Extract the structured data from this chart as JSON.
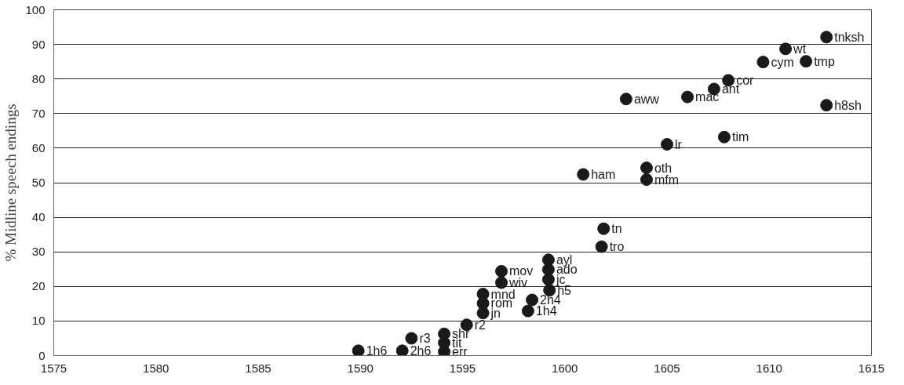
{
  "chart_data": {
    "type": "scatter",
    "ylabel": "% Midline speech endings",
    "xlim": [
      1575,
      1615
    ],
    "xticks": [
      1575,
      1580,
      1585,
      1590,
      1595,
      1600,
      1605,
      1610,
      1615
    ],
    "ylim": [
      0,
      100
    ],
    "yticks": [
      0,
      10,
      20,
      30,
      40,
      50,
      60,
      70,
      80,
      90,
      100
    ],
    "grid": "y",
    "marker": "circle",
    "series": [
      {
        "color": "#1a1a1a",
        "x": [
          1589.9,
          1592.05,
          1592.5,
          1594.1,
          1594.1,
          1594.1,
          1595.2,
          1596.0,
          1596.0,
          1596.0,
          1596.9,
          1596.9,
          1598.2,
          1598.4,
          1599.25,
          1599.2,
          1599.2,
          1599.2,
          1601.8,
          1601.9,
          1600.9,
          1604.0,
          1604.0,
          1605.0,
          1607.8,
          1603.0,
          1606.0,
          1607.3,
          1608.0,
          1609.7,
          1611.8,
          1610.8,
          1612.8,
          1612.8
        ],
        "values": [
          1.4,
          1.4,
          5.0,
          1.1,
          3.7,
          6.3,
          8.9,
          12.3,
          15.1,
          17.8,
          21.1,
          24.4,
          12.9,
          16.1,
          18.9,
          22.0,
          24.9,
          27.7,
          31.5,
          36.7,
          52.4,
          54.3,
          50.9,
          61.1,
          63.2,
          74.2,
          74.8,
          77.1,
          79.6,
          84.9,
          85.1,
          88.7,
          92.1,
          72.4
        ]
      }
    ],
    "annotations": [
      {
        "text": "1h6",
        "x": 1589.9,
        "y": 1.4
      },
      {
        "text": "2h6",
        "x": 1592.05,
        "y": 1.4
      },
      {
        "text": "r3",
        "x": 1592.5,
        "y": 5.0
      },
      {
        "text": "err",
        "x": 1594.1,
        "y": 1.1
      },
      {
        "text": "tit",
        "x": 1594.1,
        "y": 3.7
      },
      {
        "text": "shr",
        "x": 1594.1,
        "y": 6.3
      },
      {
        "text": "r2",
        "x": 1595.2,
        "y": 8.9
      },
      {
        "text": "jn",
        "x": 1596.0,
        "y": 12.3
      },
      {
        "text": "rom",
        "x": 1596.0,
        "y": 15.1
      },
      {
        "text": "mnd",
        "x": 1596.0,
        "y": 17.8
      },
      {
        "text": "wiv",
        "x": 1596.9,
        "y": 21.1
      },
      {
        "text": "mov",
        "x": 1596.9,
        "y": 24.4
      },
      {
        "text": "1h4",
        "x": 1598.2,
        "y": 12.9
      },
      {
        "text": "2h4",
        "x": 1598.4,
        "y": 16.1
      },
      {
        "text": "h5",
        "x": 1599.25,
        "y": 18.9
      },
      {
        "text": "jc",
        "x": 1599.2,
        "y": 22.0
      },
      {
        "text": "ado",
        "x": 1599.2,
        "y": 24.9
      },
      {
        "text": "ayl",
        "x": 1599.2,
        "y": 27.7
      },
      {
        "text": "tro",
        "x": 1601.8,
        "y": 31.5
      },
      {
        "text": "tn",
        "x": 1601.9,
        "y": 36.7
      },
      {
        "text": "ham",
        "x": 1600.9,
        "y": 52.4
      },
      {
        "text": "oth",
        "x": 1604.0,
        "y": 54.3
      },
      {
        "text": "mfm",
        "x": 1604.0,
        "y": 50.9
      },
      {
        "text": "lr",
        "x": 1605.0,
        "y": 61.1
      },
      {
        "text": "tim",
        "x": 1607.8,
        "y": 63.2
      },
      {
        "text": "aww",
        "x": 1603.0,
        "y": 74.2
      },
      {
        "text": "mac",
        "x": 1606.0,
        "y": 74.8
      },
      {
        "text": "ant",
        "x": 1607.3,
        "y": 77.1
      },
      {
        "text": "cor",
        "x": 1608.0,
        "y": 79.6
      },
      {
        "text": "cym",
        "x": 1609.7,
        "y": 84.9
      },
      {
        "text": "tmp",
        "x": 1611.8,
        "y": 85.1
      },
      {
        "text": "wt",
        "x": 1610.8,
        "y": 88.7
      },
      {
        "text": "tnksh",
        "x": 1612.8,
        "y": 92.1
      },
      {
        "text": "h8sh",
        "x": 1612.8,
        "y": 72.4
      }
    ]
  }
}
